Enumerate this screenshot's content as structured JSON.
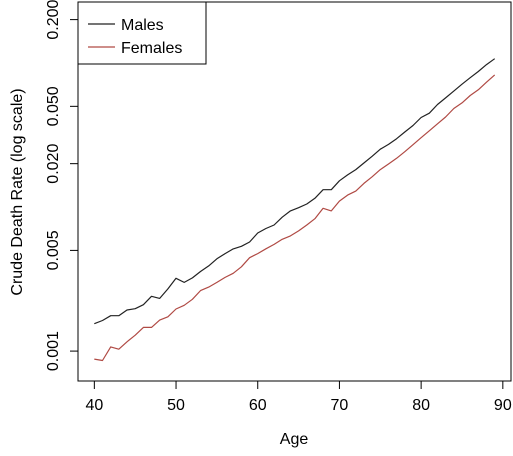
{
  "chart_data": {
    "type": "line",
    "title": "",
    "xlabel": "Age",
    "ylabel": "Crude Death Rate (log scale)",
    "x_log": false,
    "y_log": true,
    "xlim": [
      38,
      91
    ],
    "ylim": [
      0.00062,
      0.265
    ],
    "x_ticks": [
      40,
      50,
      60,
      70,
      80,
      90
    ],
    "x_tick_labels": [
      "40",
      "50",
      "60",
      "70",
      "80",
      "90"
    ],
    "y_ticks": [
      0.001,
      0.005,
      0.02,
      0.05,
      0.2
    ],
    "y_tick_labels": [
      "0.001",
      "0.005",
      "0.020",
      "0.050",
      "0.200"
    ],
    "legend": {
      "position": "top-left",
      "entries": [
        "Males",
        "Females"
      ]
    },
    "grid": false,
    "x": [
      40,
      41,
      42,
      43,
      44,
      45,
      46,
      47,
      48,
      49,
      50,
      51,
      52,
      53,
      54,
      55,
      56,
      57,
      58,
      59,
      60,
      61,
      62,
      63,
      64,
      65,
      66,
      67,
      68,
      69,
      70,
      71,
      72,
      73,
      74,
      75,
      76,
      77,
      78,
      79,
      80,
      81,
      82,
      83,
      84,
      85,
      86,
      87,
      88,
      89
    ],
    "series": [
      {
        "name": "Males",
        "color": "#222222",
        "values": [
          0.00155,
          0.00163,
          0.00176,
          0.00176,
          0.00193,
          0.00197,
          0.0021,
          0.0024,
          0.00232,
          0.0027,
          0.0032,
          0.003,
          0.00322,
          0.00357,
          0.0039,
          0.00437,
          0.00475,
          0.00512,
          0.00534,
          0.00572,
          0.0066,
          0.0071,
          0.0075,
          0.0085,
          0.0094,
          0.0099,
          0.0105,
          0.0115,
          0.0132,
          0.0132,
          0.0152,
          0.0167,
          0.0182,
          0.0202,
          0.0225,
          0.0252,
          0.0272,
          0.0298,
          0.0332,
          0.0368,
          0.0418,
          0.0448,
          0.0515,
          0.0572,
          0.0638,
          0.0712,
          0.079,
          0.0873,
          0.0974,
          0.107
        ]
      },
      {
        "name": "Females",
        "color": "#b04a44",
        "values": [
          0.00088,
          0.00086,
          0.00107,
          0.00103,
          0.00116,
          0.00129,
          0.00146,
          0.00146,
          0.00164,
          0.00173,
          0.00196,
          0.00208,
          0.00229,
          0.00263,
          0.00278,
          0.003,
          0.00325,
          0.00347,
          0.00385,
          0.00445,
          0.00475,
          0.00513,
          0.0055,
          0.00597,
          0.0063,
          0.00683,
          0.0075,
          0.0083,
          0.0098,
          0.0094,
          0.011,
          0.0121,
          0.0129,
          0.0146,
          0.0162,
          0.0182,
          0.0199,
          0.0218,
          0.0242,
          0.0271,
          0.0303,
          0.0338,
          0.0378,
          0.0422,
          0.0483,
          0.0528,
          0.0595,
          0.0651,
          0.0735,
          0.0827
        ]
      }
    ]
  }
}
